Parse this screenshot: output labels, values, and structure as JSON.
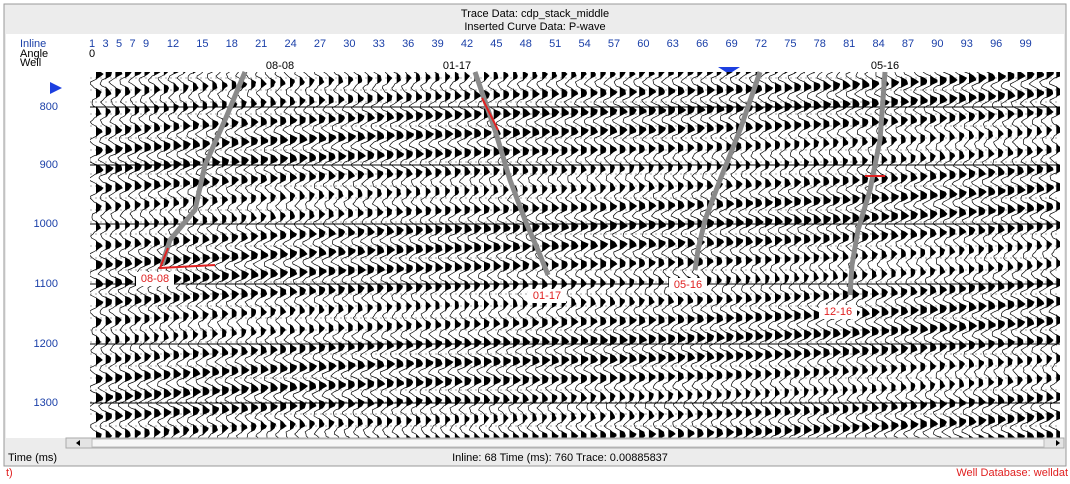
{
  "window": {
    "title": "Trace Data: cdp_stack_middle",
    "subtitle": "Inserted Curve Data: P-wave"
  },
  "header_rows": {
    "inline_label": "Inline",
    "angle_label": "Angle",
    "well_label": "Well",
    "inline_numbers": [
      1,
      3,
      5,
      7,
      9,
      12,
      15,
      18,
      21,
      24,
      27,
      30,
      33,
      36,
      39,
      42,
      45,
      48,
      51,
      54,
      57,
      60,
      63,
      66,
      69,
      72,
      75,
      78,
      81,
      84,
      87,
      90,
      93,
      96,
      99
    ],
    "angle_value": "0"
  },
  "wells_top": [
    "08-08",
    "01-17",
    "05-16"
  ],
  "wells_bottom": [
    "08-08",
    "01-17",
    "05-16",
    "12-16"
  ],
  "time_ticks": [
    800,
    900,
    1000,
    1100,
    1200,
    1300
  ],
  "time_axis_label": "Time (ms)",
  "status": "Inline: 68 Time (ms): 760 Trace: 0.00885837",
  "footer": {
    "left": "t)",
    "right": "Well Database: welldat"
  }
}
